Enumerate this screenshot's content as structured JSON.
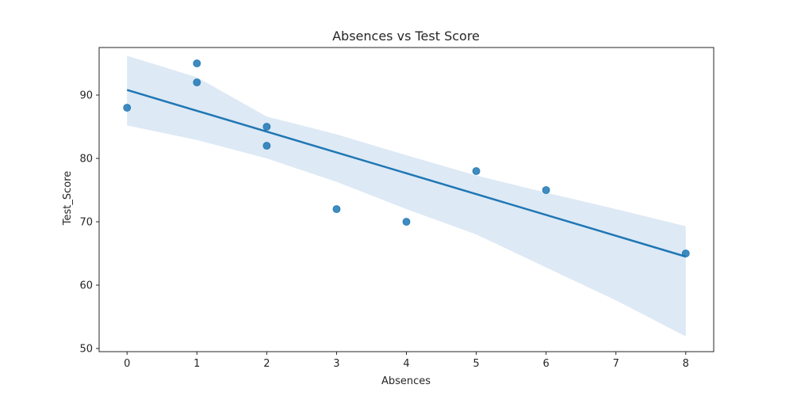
{
  "chart_data": {
    "type": "scatter",
    "title": "Absences vs Test Score",
    "xlabel": "Absences",
    "ylabel": "Test_Score",
    "xlim": [
      -0.4,
      8.4
    ],
    "ylim": [
      49.5,
      97.5
    ],
    "xticks": [
      0,
      1,
      2,
      3,
      4,
      5,
      6,
      7,
      8
    ],
    "yticks": [
      50,
      60,
      70,
      80,
      90
    ],
    "grid": false,
    "point_color": "#1f77b4",
    "band_color": "#c6dbef",
    "points": [
      {
        "x": 0,
        "y": 88
      },
      {
        "x": 1,
        "y": 95
      },
      {
        "x": 1,
        "y": 92
      },
      {
        "x": 2,
        "y": 85
      },
      {
        "x": 2,
        "y": 82
      },
      {
        "x": 3,
        "y": 72
      },
      {
        "x": 4,
        "y": 70
      },
      {
        "x": 5,
        "y": 78
      },
      {
        "x": 6,
        "y": 75
      },
      {
        "x": 8,
        "y": 65
      }
    ],
    "regression": {
      "line": [
        {
          "x": 0,
          "y": 90.8
        },
        {
          "x": 8,
          "y": 64.5
        }
      ],
      "ci_upper": [
        {
          "x": 0,
          "y": 96.2
        },
        {
          "x": 1,
          "y": 92.8
        },
        {
          "x": 2,
          "y": 86.6
        },
        {
          "x": 3,
          "y": 83.8
        },
        {
          "x": 4,
          "y": 80.5
        },
        {
          "x": 5,
          "y": 77.3
        },
        {
          "x": 6,
          "y": 74.6
        },
        {
          "x": 7,
          "y": 72.0
        },
        {
          "x": 8,
          "y": 69.3
        }
      ],
      "ci_lower": [
        {
          "x": 0,
          "y": 85.2
        },
        {
          "x": 1,
          "y": 82.9
        },
        {
          "x": 2,
          "y": 80.0
        },
        {
          "x": 3,
          "y": 76.3
        },
        {
          "x": 4,
          "y": 72.0
        },
        {
          "x": 5,
          "y": 68.0
        },
        {
          "x": 6,
          "y": 62.8
        },
        {
          "x": 7,
          "y": 57.6
        },
        {
          "x": 8,
          "y": 51.9
        }
      ]
    }
  }
}
